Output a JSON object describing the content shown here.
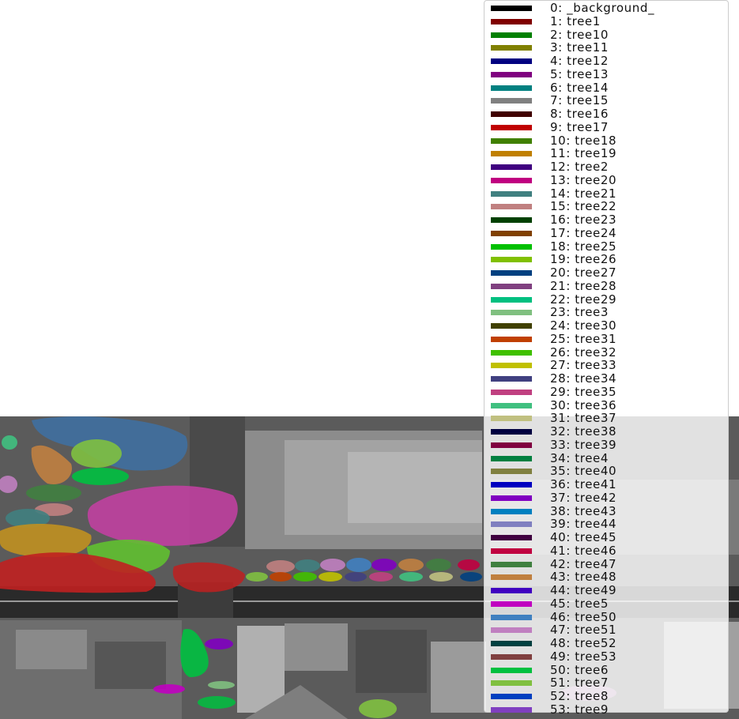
{
  "legend": {
    "entries": [
      {
        "label": "0: _background_",
        "color": "#000000"
      },
      {
        "label": "1: tree1",
        "color": "#800000"
      },
      {
        "label": "2: tree10",
        "color": "#008000"
      },
      {
        "label": "3: tree11",
        "color": "#808000"
      },
      {
        "label": "4: tree12",
        "color": "#000080"
      },
      {
        "label": "5: tree13",
        "color": "#800080"
      },
      {
        "label": "6: tree14",
        "color": "#008080"
      },
      {
        "label": "7: tree15",
        "color": "#808080"
      },
      {
        "label": "8: tree16",
        "color": "#400000"
      },
      {
        "label": "9: tree17",
        "color": "#c00000"
      },
      {
        "label": "10: tree18",
        "color": "#408000"
      },
      {
        "label": "11: tree19",
        "color": "#c08000"
      },
      {
        "label": "12: tree2",
        "color": "#400080"
      },
      {
        "label": "13: tree20",
        "color": "#c00080"
      },
      {
        "label": "14: tree21",
        "color": "#408080"
      },
      {
        "label": "15: tree22",
        "color": "#c08080"
      },
      {
        "label": "16: tree23",
        "color": "#004000"
      },
      {
        "label": "17: tree24",
        "color": "#804000"
      },
      {
        "label": "18: tree25",
        "color": "#00c000"
      },
      {
        "label": "19: tree26",
        "color": "#80c000"
      },
      {
        "label": "20: tree27",
        "color": "#004080"
      },
      {
        "label": "21: tree28",
        "color": "#804080"
      },
      {
        "label": "22: tree29",
        "color": "#00c080"
      },
      {
        "label": "23: tree3",
        "color": "#80c080"
      },
      {
        "label": "24: tree30",
        "color": "#404000"
      },
      {
        "label": "25: tree31",
        "color": "#c04000"
      },
      {
        "label": "26: tree32",
        "color": "#40c000"
      },
      {
        "label": "27: tree33",
        "color": "#c0c000"
      },
      {
        "label": "28: tree34",
        "color": "#404080"
      },
      {
        "label": "29: tree35",
        "color": "#c04080"
      },
      {
        "label": "30: tree36",
        "color": "#40c080"
      },
      {
        "label": "31: tree37",
        "color": "#c0c080"
      },
      {
        "label": "32: tree38",
        "color": "#000040"
      },
      {
        "label": "33: tree39",
        "color": "#800040"
      },
      {
        "label": "34: tree4",
        "color": "#008040"
      },
      {
        "label": "35: tree40",
        "color": "#808040"
      },
      {
        "label": "36: tree41",
        "color": "#0000c0"
      },
      {
        "label": "37: tree42",
        "color": "#8000c0"
      },
      {
        "label": "38: tree43",
        "color": "#0080c0"
      },
      {
        "label": "39: tree44",
        "color": "#8080c0"
      },
      {
        "label": "40: tree45",
        "color": "#400040"
      },
      {
        "label": "41: tree46",
        "color": "#c00040"
      },
      {
        "label": "42: tree47",
        "color": "#408040"
      },
      {
        "label": "43: tree48",
        "color": "#c08040"
      },
      {
        "label": "44: tree49",
        "color": "#4000c0"
      },
      {
        "label": "45: tree5",
        "color": "#c000c0"
      },
      {
        "label": "46: tree50",
        "color": "#4080c0"
      },
      {
        "label": "47: tree51",
        "color": "#c080c0"
      },
      {
        "label": "48: tree52",
        "color": "#004040"
      },
      {
        "label": "49: tree53",
        "color": "#804040"
      },
      {
        "label": "50: tree6",
        "color": "#00c040"
      },
      {
        "label": "51: tree7",
        "color": "#80c040"
      },
      {
        "label": "52: tree8",
        "color": "#0040c0"
      },
      {
        "label": "53: tree9",
        "color": "#8040c0"
      }
    ]
  }
}
